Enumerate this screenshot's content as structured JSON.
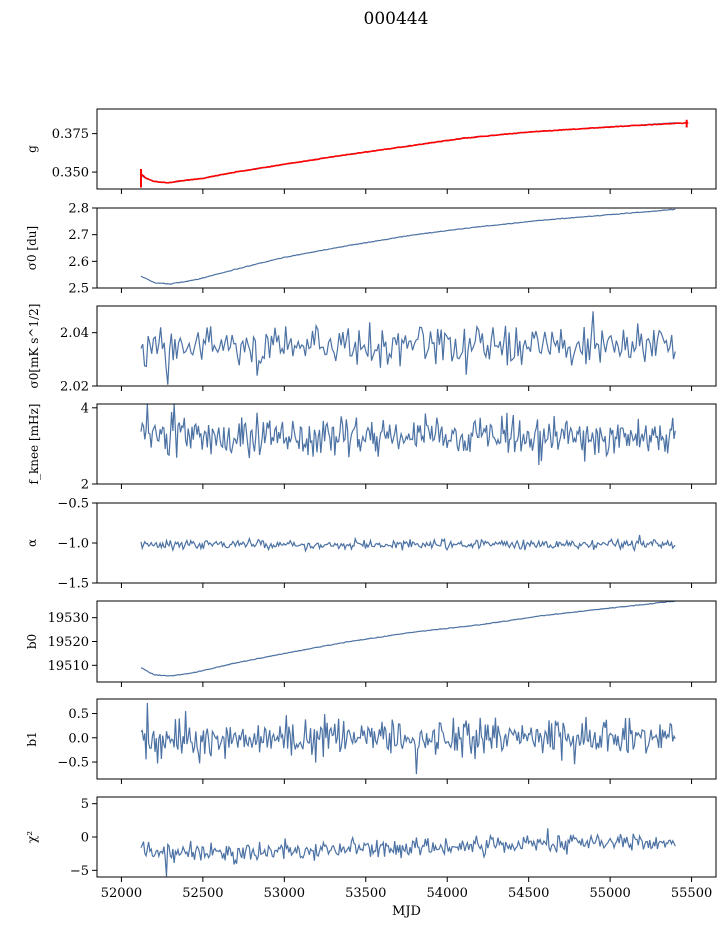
{
  "figure_title": "000444",
  "colors": {
    "series": "#4c72a4",
    "fit": "#ff0000",
    "axes": "#000000"
  },
  "chart_data": [
    {
      "type": "line",
      "ylabel": "g",
      "ylim": [
        0.339,
        0.391
      ],
      "yticks": [
        0.35,
        0.375
      ],
      "ytick_labels": [
        "0.350",
        "0.375"
      ],
      "xlim": [
        51850,
        55650
      ],
      "series": [
        {
          "x": [
            52120,
            52150,
            52200,
            52280,
            52350,
            52500,
            52700,
            53000,
            53300,
            53700,
            54100,
            54500,
            54800,
            55100,
            55400
          ],
          "y": [
            0.348,
            0.346,
            0.344,
            0.343,
            0.344,
            0.346,
            0.35,
            0.355,
            0.36,
            0.366,
            0.372,
            0.376,
            0.378,
            0.38,
            0.382
          ]
        },
        {
          "x": [
            52120,
            52150,
            52200,
            52280,
            52350,
            52500,
            52700,
            53000,
            53300,
            53700,
            54100,
            54500,
            54800,
            55100,
            55480
          ],
          "y": [
            0.349,
            0.346,
            0.344,
            0.343,
            0.344,
            0.346,
            0.35,
            0.355,
            0.36,
            0.366,
            0.372,
            0.376,
            0.378,
            0.38,
            0.382
          ]
        }
      ]
    },
    {
      "type": "line",
      "ylabel": "σ0 [du]",
      "ylim": [
        2.5,
        2.8
      ],
      "yticks": [
        2.5,
        2.6,
        2.7,
        2.8
      ],
      "ytick_labels": [
        "2.5",
        "2.6",
        "2.7",
        "2.8"
      ],
      "xlim": [
        51850,
        55650
      ],
      "series": [
        {
          "x": [
            52120,
            52200,
            52300,
            52450,
            52700,
            53000,
            53400,
            53800,
            54200,
            54600,
            55000,
            55400
          ],
          "y": [
            2.545,
            2.52,
            2.515,
            2.53,
            2.57,
            2.615,
            2.66,
            2.7,
            2.73,
            2.755,
            2.775,
            2.795
          ]
        }
      ]
    },
    {
      "type": "line",
      "ylabel": "σ0[mK s^1/2]",
      "ylim": [
        2.02,
        2.05
      ],
      "yticks": [
        2.02,
        2.04
      ],
      "ytick_labels": [
        "2.02",
        "2.04"
      ],
      "xlim": [
        51850,
        55650
      ],
      "series": [
        {
          "x_start": 52120,
          "x_end": 55400,
          "n": 300,
          "mean": 2.035,
          "amplitude": 0.007,
          "features": [
            {
              "x": 52290,
              "y": 2.0205
            },
            {
              "x": 52240,
              "y": 2.042
            },
            {
              "x": 54900,
              "y": 2.048
            }
          ]
        }
      ]
    },
    {
      "type": "line",
      "ylabel": "f_knee [mHz]",
      "ylim": [
        2,
        4.1
      ],
      "yticks": [
        2,
        4
      ],
      "ytick_labels": [
        "2",
        "4"
      ],
      "xlim": [
        51850,
        55650
      ],
      "series": [
        {
          "x_start": 52120,
          "x_end": 55400,
          "n": 420,
          "mean": 3.25,
          "amplitude": 0.45,
          "features": [
            {
              "x": 52160,
              "y": 4.1
            },
            {
              "x": 52320,
              "y": 4.1
            },
            {
              "x": 54560,
              "y": 2.5
            }
          ]
        }
      ]
    },
    {
      "type": "line",
      "ylabel": "α",
      "ylim": [
        -1.5,
        -0.5
      ],
      "yticks": [
        -1.5,
        -1.0,
        -0.5
      ],
      "ytick_labels": [
        "−1.5",
        "−1.0",
        "−0.5"
      ],
      "xlim": [
        51850,
        55650
      ],
      "series": [
        {
          "x_start": 52120,
          "x_end": 55400,
          "n": 420,
          "mean": -1.02,
          "amplitude": 0.05,
          "features": [
            {
              "x": 55180,
              "y": -0.9
            }
          ]
        }
      ]
    },
    {
      "type": "line",
      "ylabel": "b0",
      "ylim": [
        19503,
        19537
      ],
      "yticks": [
        19510,
        19520,
        19530
      ],
      "ytick_labels": [
        "19510",
        "19520",
        "19530"
      ],
      "xlim": [
        51850,
        55650
      ],
      "series": [
        {
          "x": [
            52120,
            52200,
            52300,
            52450,
            52700,
            53000,
            53400,
            53800,
            54200,
            54600,
            55000,
            55400
          ],
          "y": [
            19509,
            19506,
            19505.5,
            19507,
            19511,
            19515,
            19520,
            19524,
            19527,
            19531,
            19534,
            19537
          ]
        }
      ]
    },
    {
      "type": "line",
      "ylabel": "b1",
      "ylim": [
        -0.85,
        0.8
      ],
      "yticks": [
        -0.5,
        0.0,
        0.5
      ],
      "ytick_labels": [
        "−0.5",
        "0.0",
        "0.5"
      ],
      "xlim": [
        51850,
        55650
      ],
      "series": [
        {
          "x_start": 52120,
          "x_end": 55400,
          "n": 420,
          "mean": 0.0,
          "amplitude": 0.35,
          "features": [
            {
              "x": 52160,
              "y": 0.72
            },
            {
              "x": 53810,
              "y": -0.75
            }
          ]
        }
      ]
    },
    {
      "type": "line",
      "ylabel": "χ²",
      "ylim": [
        -6,
        6
      ],
      "yticks": [
        -5,
        0,
        5
      ],
      "ytick_labels": [
        "−5",
        "0",
        "5"
      ],
      "xlabel": "MJD",
      "xticks": [
        52000,
        52500,
        53000,
        53500,
        54000,
        54500,
        55000,
        55500
      ],
      "xtick_labels": [
        "52000",
        "52500",
        "53000",
        "53500",
        "54000",
        "54500",
        "55000",
        "55500"
      ],
      "xlim": [
        51850,
        55650
      ],
      "series": [
        {
          "x_start": 52120,
          "x_end": 55400,
          "n": 420,
          "mean_start": -2.5,
          "mean_end": -0.7,
          "amplitude": 1.2,
          "features": [
            {
              "x": 52280,
              "y": -5.9
            },
            {
              "x": 54620,
              "y": 1.3
            }
          ]
        }
      ]
    }
  ]
}
